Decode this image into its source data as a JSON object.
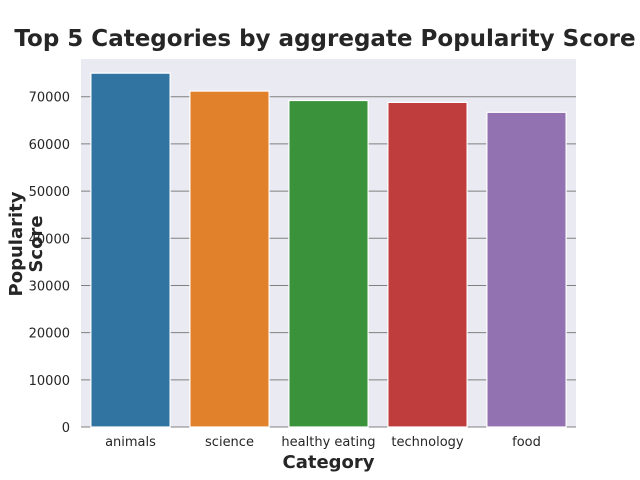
{
  "chart_data": {
    "type": "bar",
    "title": "Top 5 Categories by aggregate Popularity Score",
    "xlabel": "Category",
    "ylabel": "Popularity Score",
    "categories": [
      "animals",
      "science",
      "healthy eating",
      "technology",
      "food"
    ],
    "values": [
      75000,
      71200,
      69200,
      68800,
      66700
    ],
    "colors": [
      "#3274a1",
      "#e1812c",
      "#3a923a",
      "#c03d3e",
      "#9372b2"
    ],
    "ylim": [
      0,
      78000
    ],
    "yticks": [
      0,
      10000,
      20000,
      30000,
      40000,
      50000,
      60000,
      70000
    ],
    "grid": true,
    "background": "#eaeaf2",
    "gridline_color": "#808080"
  }
}
